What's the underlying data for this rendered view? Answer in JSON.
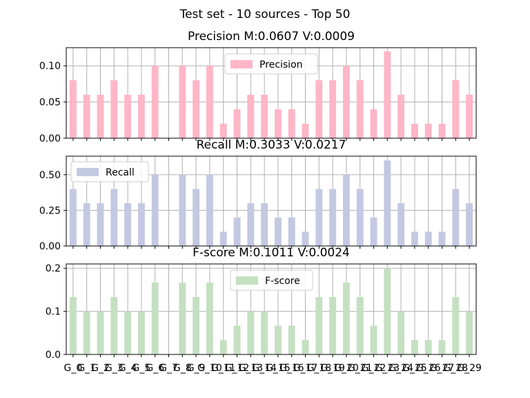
{
  "suptitle": "Test set - 10 sources - Top 50",
  "chart_data": [
    {
      "type": "bar",
      "title": "Precision M:0.0607 V:0.0009",
      "legend": "Precision",
      "legend_position": "top-center",
      "color": "#ffb6c6",
      "grid": true,
      "ylim": [
        0,
        0.125
      ],
      "yticks": [
        "0.00",
        "0.05",
        "0.10"
      ],
      "values": [
        0.08,
        0.06,
        0.06,
        0.08,
        0.06,
        0.06,
        0.1,
        0.0,
        0.1,
        0.08,
        0.1,
        0.02,
        0.04,
        0.06,
        0.06,
        0.04,
        0.04,
        0.02,
        0.08,
        0.08,
        0.1,
        0.08,
        0.04,
        0.12,
        0.06,
        0.02,
        0.02,
        0.02,
        0.08,
        0.06
      ]
    },
    {
      "type": "bar",
      "title": "Recall M:0.3033 V:0.0217",
      "legend": "Recall",
      "legend_position": "top-left",
      "color": "#c3c9e2",
      "grid": true,
      "ylim": [
        0,
        0.63
      ],
      "yticks": [
        "0.00",
        "0.25",
        "0.50"
      ],
      "values": [
        0.4,
        0.3,
        0.3,
        0.4,
        0.3,
        0.3,
        0.5,
        0.0,
        0.5,
        0.4,
        0.5,
        0.1,
        0.2,
        0.3,
        0.3,
        0.2,
        0.2,
        0.1,
        0.4,
        0.4,
        0.5,
        0.4,
        0.2,
        0.6,
        0.3,
        0.1,
        0.1,
        0.1,
        0.4,
        0.3
      ]
    },
    {
      "type": "bar",
      "title": "F-score M:0.1011 V:0.0024",
      "legend": "F-score",
      "legend_position": "top-center",
      "color": "#c4e0c1",
      "grid": true,
      "ylim": [
        0,
        0.21
      ],
      "yticks": [
        "0.0",
        "0.1",
        "0.2"
      ],
      "values": [
        0.1333,
        0.1,
        0.1,
        0.1333,
        0.1,
        0.1,
        0.1667,
        0.0,
        0.1667,
        0.1333,
        0.1667,
        0.0333,
        0.0667,
        0.1,
        0.1,
        0.0667,
        0.0667,
        0.0333,
        0.1333,
        0.1333,
        0.1667,
        0.1333,
        0.0667,
        0.2,
        0.1,
        0.0333,
        0.0333,
        0.0333,
        0.1333,
        0.1
      ]
    }
  ],
  "categories": [
    "G_0",
    "G_1",
    "G_2",
    "G_3",
    "G_4",
    "G_5",
    "G_6",
    "G_7",
    "G_8",
    "G_9",
    "G_10",
    "G_11",
    "G_12",
    "G_13",
    "G_14",
    "G_15",
    "G_16",
    "G_17",
    "G_18",
    "G_19",
    "G_20",
    "G_21",
    "G_22",
    "G_23",
    "G_24",
    "G_25",
    "G_26",
    "G_27",
    "G_28",
    "G_29"
  ]
}
